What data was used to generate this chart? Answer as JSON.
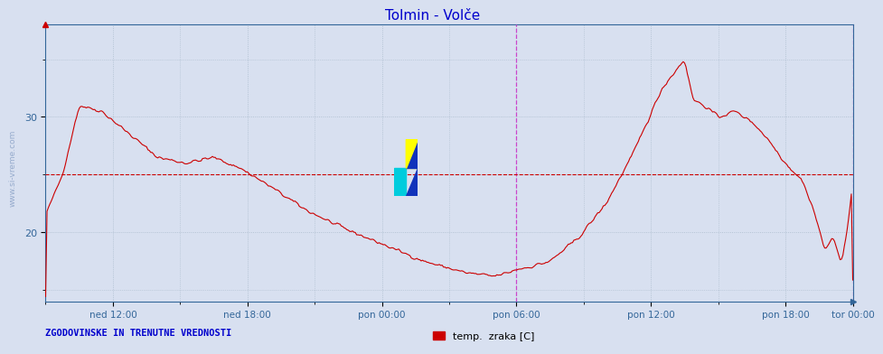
{
  "title": "Tolmin - Volče",
  "title_color": "#0000cc",
  "title_fontsize": 11,
  "background_color": "#d8e0f0",
  "line_color": "#cc0000",
  "line_width": 0.8,
  "ylim_min": 14,
  "ylim_max": 38,
  "xlim_min": 0,
  "xlim_max": 576,
  "ytick_positions": [
    20,
    30
  ],
  "ytick_labels": [
    "20",
    "30"
  ],
  "x_tick_positions": [
    48,
    144,
    240,
    336,
    432,
    528,
    576
  ],
  "x_tick_labels": [
    "ned 12:00",
    "ned 18:00",
    "pon 00:00",
    "pon 06:00",
    "pon 12:00",
    "pon 18:00",
    "tor 00:00"
  ],
  "x_tick_last_pos": 576,
  "vline_positions": [
    336,
    576
  ],
  "vline_color": "#cc44cc",
  "hline_y": 25.0,
  "hline_color": "#cc0000",
  "grid_color": "#aabbcc",
  "watermark_text": "www.si-vreme.com",
  "watermark_color": "#1144aa",
  "legend_label": "temp.  zraka [C]",
  "legend_color": "#cc0000",
  "bottom_label": "ZGODOVINSKE IN TRENUTNE VREDNOSTI",
  "bottom_label_color": "#0000cc",
  "waypoints_x": [
    0,
    12,
    24,
    40,
    60,
    80,
    100,
    120,
    140,
    160,
    185,
    210,
    240,
    270,
    300,
    320,
    330,
    336,
    345,
    360,
    380,
    400,
    420,
    440,
    456,
    462,
    470,
    480,
    492,
    505,
    516,
    528,
    540,
    548,
    556,
    562,
    568,
    572,
    576
  ],
  "waypoints_y": [
    21.5,
    25.0,
    31.0,
    30.5,
    28.5,
    26.5,
    26.0,
    26.5,
    25.5,
    24.0,
    22.0,
    20.5,
    19.0,
    17.5,
    16.5,
    16.2,
    16.5,
    16.8,
    17.0,
    17.5,
    19.5,
    22.5,
    27.0,
    32.5,
    35.0,
    31.5,
    31.0,
    30.0,
    30.5,
    29.5,
    28.0,
    26.0,
    24.5,
    22.0,
    18.5,
    19.5,
    17.5,
    20.0,
    24.5
  ]
}
